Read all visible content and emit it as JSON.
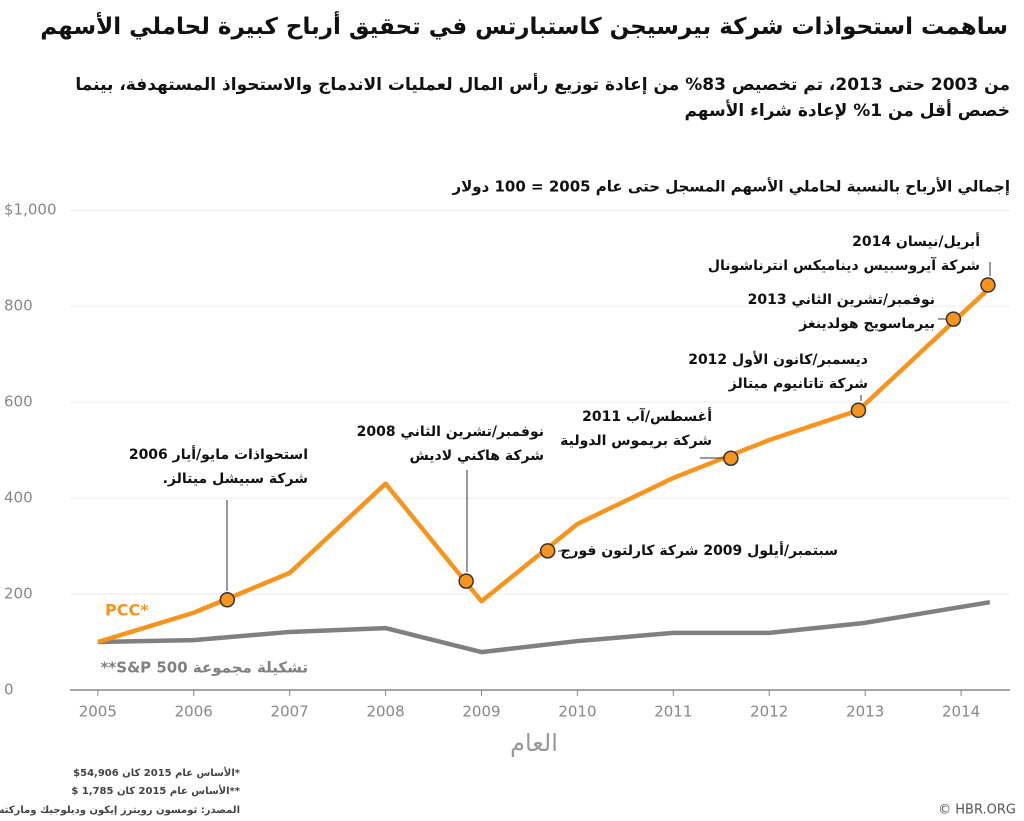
{
  "chart_data": {
    "type": "line",
    "title": "ساهمت استحواذات شركة بيرسيجن كاستبارتس في تحقيق أرباح كبيرة لحاملي الأسهم",
    "subtitle": "من 2003 حتى 2013، تم تخصيص 83% من إعادة توزيع رأس المال لعمليات الاندماج والاستحواذ المستهدفة، بينما خصص أقل من 1% لإعادة شراء الأسهم",
    "chart_title": "إجمالي الأرباح بالنسبة لحاملي الأسهم المسجل حتى عام 2005 = 100 دولار",
    "x_label": "العام",
    "xlim": [
      2004.71,
      2014.51
    ],
    "xticks": [
      2005,
      2006,
      2007,
      2008,
      2009,
      2010,
      2011,
      2012,
      2013,
      2014
    ],
    "ylim": [
      0,
      1040
    ],
    "yticks": [
      0,
      200,
      400,
      600,
      800,
      {
        "value": 1000,
        "label": "$1,000"
      }
    ],
    "grid": true,
    "series": [
      {
        "name": "PCC*",
        "color": "#f7941d",
        "x": [
          2005,
          2006,
          2007,
          2008,
          2009,
          2010,
          2011,
          2012,
          2012.93,
          2014.33
        ],
        "values": [
          100,
          161,
          244,
          430,
          185,
          346,
          442,
          521,
          583,
          844
        ]
      },
      {
        "name": "تشكيلة مجموعة S&P 500**",
        "color": "#808080",
        "x": [
          2005,
          2006,
          2007,
          2008,
          2009,
          2010,
          2011,
          2012,
          2013,
          2014.3
        ],
        "values": [
          100,
          104,
          121,
          129,
          79,
          102,
          119,
          119,
          140,
          183
        ]
      }
    ],
    "annotations": [
      {
        "x": 2006.35,
        "y": 188,
        "lines": [
          "استحواذات مايو/أيار 2006",
          "شركة سبيشل ميتالز."
        ]
      },
      {
        "x": 2008.84,
        "y": 227,
        "lines": [
          "نوفمبر/تشرين الثاني 2008",
          "شركة هاكني لاديش"
        ]
      },
      {
        "x": 2009.69,
        "y": 290,
        "lines": [
          "سبتمبر/أيلول 2009 شركة كارلتون فورج"
        ]
      },
      {
        "x": 2011.6,
        "y": 483,
        "lines": [
          "أغسطس/آب 2011",
          "شركة بريموس الدولية"
        ]
      },
      {
        "x": 2012.93,
        "y": 583,
        "lines": [
          "ديسمبر/كانون الأول 2012",
          "شركة تاتانيوم ميتالز"
        ]
      },
      {
        "x": 2013.92,
        "y": 773,
        "lines": [
          "نوفمبر/تشرين الثاني 2013",
          "بيرماسويج هولدينغز"
        ]
      },
      {
        "x": 2014.28,
        "y": 844,
        "lines": [
          "أبريل/نيسان 2014",
          "شركة آيروسبيس ديناميكس انترناشونال"
        ]
      }
    ],
    "footnotes": [
      "*الأساس عام 2015 كان 54,906$",
      "**الأساس عام 2015 كان 1,785 $",
      "المصدر: ثومسون رويترز إيكون وديلوجيك وماركتستريم"
    ],
    "credit": "© HBR.ORG"
  }
}
